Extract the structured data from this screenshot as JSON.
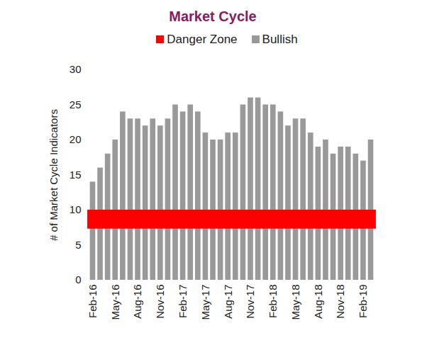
{
  "chart_data": {
    "type": "bar",
    "title": "Market Cycle",
    "y_label": "# of Market Cycle Indicators",
    "categories": [
      "Feb-16",
      null,
      null,
      "May-16",
      null,
      null,
      "Aug-16",
      null,
      null,
      "Nov-16",
      null,
      null,
      "Feb-17",
      null,
      null,
      "May-17",
      null,
      null,
      "Aug-17",
      null,
      null,
      "Nov-17",
      null,
      null,
      "Feb-18",
      null,
      null,
      "May-18",
      null,
      null,
      "Aug-18",
      null,
      null,
      "Nov-18",
      null,
      null,
      "Feb-19",
      null
    ],
    "series": [
      {
        "name": "Danger Zone",
        "color": "#ff0000",
        "type": "band",
        "range": [
          7.3,
          10
        ]
      },
      {
        "name": "Bullish",
        "color": "#999999",
        "type": "bar",
        "values": [
          14,
          16,
          18,
          20,
          24,
          23,
          23,
          22,
          23,
          22,
          23,
          25,
          24,
          25,
          24,
          21,
          20,
          20,
          21,
          21,
          25,
          26,
          26,
          25,
          25,
          24,
          22,
          23,
          23,
          21,
          19,
          20,
          18,
          19,
          19,
          18,
          17,
          20
        ]
      }
    ],
    "ylim": [
      0,
      30
    ],
    "yticks": [
      0,
      5,
      10,
      15,
      20,
      25,
      30
    ],
    "grid": false,
    "legend": "top"
  }
}
